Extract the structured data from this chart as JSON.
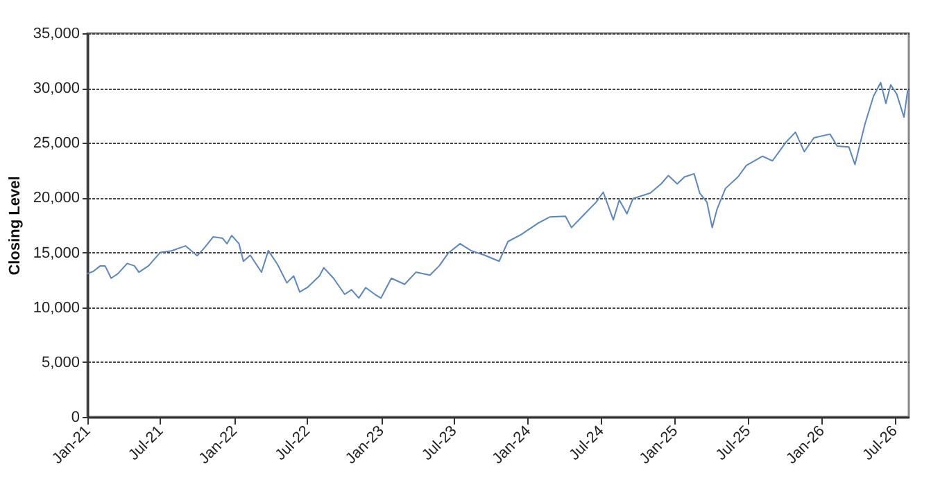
{
  "chart_data": {
    "type": "line",
    "ylabel": "Closing Level",
    "x": [
      "2021-01-01",
      "2021-01-16",
      "2021-02-02",
      "2021-02-14",
      "2021-03-01",
      "2021-03-18",
      "2021-04-10",
      "2021-04-28",
      "2021-05-09",
      "2021-06-02",
      "2021-07-01",
      "2021-07-29",
      "2021-09-02",
      "2021-10-01",
      "2021-10-18",
      "2021-11-10",
      "2021-12-03",
      "2021-12-14",
      "2021-12-26",
      "2022-01-13",
      "2022-01-24",
      "2022-02-10",
      "2022-03-10",
      "2022-03-27",
      "2022-04-19",
      "2022-05-12",
      "2022-05-29",
      "2022-06-13",
      "2022-07-02",
      "2022-08-01",
      "2022-08-12",
      "2022-09-05",
      "2022-10-03",
      "2022-10-20",
      "2022-11-07",
      "2022-11-24",
      "2022-12-17",
      "2023-01-01",
      "2023-01-27",
      "2023-03-01",
      "2023-03-29",
      "2023-05-03",
      "2023-05-26",
      "2023-06-18",
      "2023-07-17",
      "2023-08-13",
      "2023-09-16",
      "2023-10-22",
      "2023-11-13",
      "2023-12-16",
      "2024-01-28",
      "2024-02-25",
      "2024-04-04",
      "2024-04-19",
      "2024-05-22",
      "2024-06-19",
      "2024-07-07",
      "2024-08-01",
      "2024-08-16",
      "2024-09-04",
      "2024-09-19",
      "2024-11-01",
      "2024-11-28",
      "2024-12-16",
      "2025-01-07",
      "2025-01-25",
      "2025-02-18",
      "2025-03-04",
      "2025-03-22",
      "2025-04-04",
      "2025-04-16",
      "2025-05-07",
      "2025-06-07",
      "2025-06-28",
      "2025-08-07",
      "2025-09-01",
      "2025-10-04",
      "2025-10-28",
      "2025-11-19",
      "2025-12-13",
      "2026-01-22",
      "2026-02-09",
      "2026-03-10",
      "2026-03-25",
      "2026-04-19",
      "2026-05-10",
      "2026-05-28",
      "2026-06-10",
      "2026-06-22",
      "2026-07-07",
      "2026-07-25",
      "2026-08-03"
    ],
    "series": [
      {
        "color": "#5a87c1",
        "values": [
          13070,
          13280,
          13780,
          13780,
          12650,
          13070,
          14000,
          13780,
          13200,
          13780,
          15000,
          15150,
          15600,
          14700,
          15380,
          16430,
          16300,
          15800,
          16550,
          15800,
          14200,
          14750,
          13200,
          15170,
          13900,
          12230,
          12860,
          11390,
          11800,
          12860,
          13610,
          12650,
          11180,
          11600,
          10840,
          11800,
          11180,
          10840,
          12650,
          12100,
          13200,
          12940,
          13780,
          14960,
          15800,
          15170,
          14750,
          14200,
          16000,
          16640,
          17700,
          18240,
          18300,
          17270,
          18530,
          19580,
          20500,
          17980,
          19790,
          18530,
          19920,
          20420,
          21260,
          22020,
          21260,
          21890,
          22180,
          20420,
          19580,
          17270,
          18950,
          20840,
          21890,
          22940,
          23780,
          23360,
          25040,
          25970,
          24200,
          25460,
          25800,
          24700,
          24620,
          23030,
          26720,
          29240,
          30500,
          28610,
          30290,
          29450,
          27350,
          29750
        ]
      }
    ],
    "xlim": [
      "2021-01-01",
      "2026-08-06"
    ],
    "xticks": [
      {
        "value": "2021-01-01",
        "label": "Jan-21"
      },
      {
        "value": "2021-07-01",
        "label": "Jul-21"
      },
      {
        "value": "2022-01-01",
        "label": "Jan-22"
      },
      {
        "value": "2022-07-01",
        "label": "Jul-22"
      },
      {
        "value": "2023-01-01",
        "label": "Jan-23"
      },
      {
        "value": "2023-07-01",
        "label": "Jul-23"
      },
      {
        "value": "2024-01-01",
        "label": "Jan-24"
      },
      {
        "value": "2024-07-01",
        "label": "Jul-24"
      },
      {
        "value": "2025-01-01",
        "label": "Jan-25"
      },
      {
        "value": "2025-07-01",
        "label": "Jul-25"
      },
      {
        "value": "2026-01-01",
        "label": "Jan-26"
      },
      {
        "value": "2026-07-01",
        "label": "Jul-26"
      }
    ],
    "ylim": [
      0,
      35000
    ],
    "yticks": [
      {
        "value": 0,
        "label": "0"
      },
      {
        "value": 5000,
        "label": "5,000"
      },
      {
        "value": 10000,
        "label": "10,000"
      },
      {
        "value": 15000,
        "label": "15,000"
      },
      {
        "value": 20000,
        "label": "20,000"
      },
      {
        "value": 25000,
        "label": "25,000"
      },
      {
        "value": 30000,
        "label": "30,000"
      },
      {
        "value": 35000,
        "label": "35,000"
      }
    ],
    "grid": "y"
  }
}
